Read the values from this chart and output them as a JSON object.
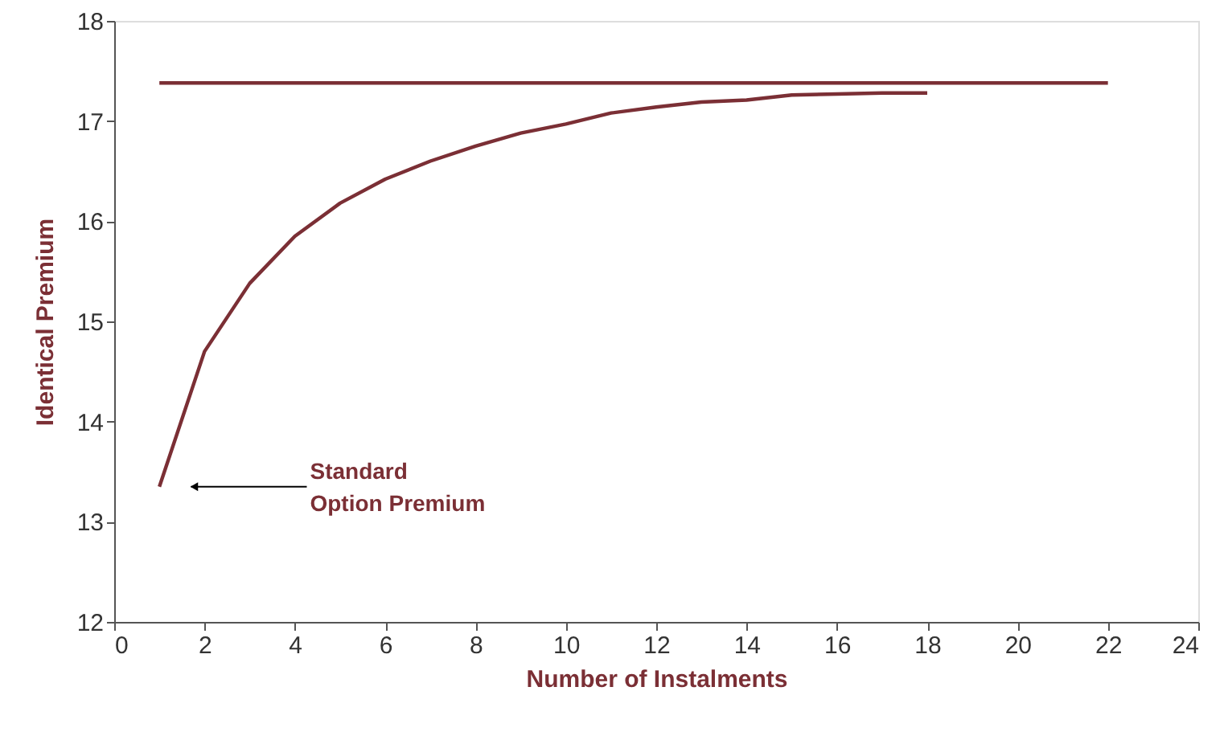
{
  "chart_data": {
    "type": "line",
    "xlabel": "Number of Instalments",
    "ylabel": "Identical Premium",
    "xlim": [
      0,
      24
    ],
    "xticks": [
      0,
      2,
      4,
      6,
      8,
      10,
      12,
      14,
      16,
      18,
      20,
      22,
      24
    ],
    "ylim": [
      12,
      18
    ],
    "yticks": [
      12,
      13,
      14,
      15,
      16,
      17,
      18
    ],
    "grid": false,
    "marker": "none",
    "line_style": "solid",
    "series": [
      {
        "color": "#7b2f35",
        "x": [
          1,
          2,
          3,
          4,
          5,
          6,
          7,
          8,
          9,
          10,
          11,
          12,
          13,
          14,
          15,
          16,
          17,
          18
        ],
        "values": [
          13.35,
          14.7,
          15.38,
          15.85,
          16.18,
          16.42,
          16.6,
          16.75,
          16.88,
          16.97,
          17.08,
          17.14,
          17.19,
          17.21,
          17.26,
          17.27,
          17.28,
          17.28
        ]
      },
      {
        "color": "#7b2f35",
        "x": [
          1,
          22
        ],
        "values": [
          17.38,
          17.38
        ]
      }
    ],
    "annotations": [
      {
        "text": "Standard\nOption Premium",
        "x": 1.7,
        "y": 13.35
      }
    ]
  }
}
